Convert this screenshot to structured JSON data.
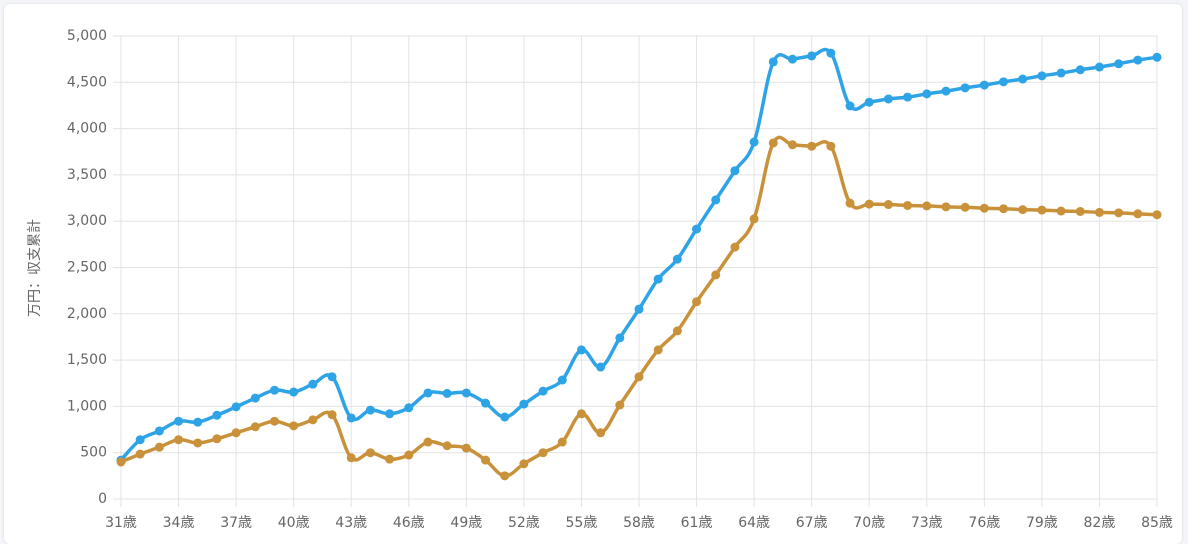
{
  "chart_data": {
    "type": "line",
    "y_label": "万円：収支累計",
    "categories": [
      "31歳",
      null,
      null,
      "34歳",
      null,
      null,
      "37歳",
      null,
      null,
      "40歳",
      null,
      null,
      "43歳",
      null,
      null,
      "46歳",
      null,
      null,
      "49歳",
      null,
      null,
      "52歳",
      null,
      null,
      "55歳",
      null,
      null,
      "58歳",
      null,
      null,
      "61歳",
      null,
      null,
      "64歳",
      null,
      null,
      "67歳",
      null,
      null,
      "70歳",
      null,
      null,
      "73歳",
      null,
      null,
      "76歳",
      null,
      null,
      "79歳",
      null,
      null,
      "82歳",
      null,
      null,
      "85歳"
    ],
    "series": [
      {
        "color": "#2ea4e6",
        "values": [
          420,
          640,
          735,
          840,
          830,
          905,
          995,
          1090,
          1175,
          1155,
          1240,
          1320,
          875,
          960,
          920,
          985,
          1145,
          1140,
          1145,
          1035,
          885,
          1025,
          1165,
          1285,
          1610,
          1425,
          1740,
          2050,
          2375,
          2590,
          2915,
          3230,
          3545,
          3855,
          4720,
          4750,
          4785,
          4815,
          4245,
          4285,
          4320,
          4340,
          4375,
          4405,
          4440,
          4470,
          4505,
          4535,
          4570,
          4600,
          4635,
          4665,
          4700,
          4740,
          4770
        ]
      },
      {
        "color": "#c9913a",
        "values": [
          400,
          485,
          560,
          640,
          605,
          650,
          715,
          780,
          840,
          790,
          855,
          910,
          445,
          500,
          430,
          475,
          615,
          575,
          550,
          420,
          250,
          380,
          500,
          615,
          920,
          715,
          1015,
          1320,
          1610,
          1815,
          2130,
          2420,
          2720,
          3025,
          3845,
          3825,
          3810,
          3810,
          3195,
          3185,
          3180,
          3170,
          3165,
          3155,
          3150,
          3140,
          3135,
          3125,
          3120,
          3110,
          3105,
          3095,
          3090,
          3080,
          3070
        ]
      }
    ],
    "ylim": [
      0,
      5000
    ],
    "yticks": [
      {
        "value": 0,
        "label": "0"
      },
      {
        "value": 500,
        "label": "500"
      },
      {
        "value": 1000,
        "label": "1,000"
      },
      {
        "value": 1500,
        "label": "1,500"
      },
      {
        "value": 2000,
        "label": "2,000"
      },
      {
        "value": 2500,
        "label": "2,500"
      },
      {
        "value": 3000,
        "label": "3,000"
      },
      {
        "value": 3500,
        "label": "3,500"
      },
      {
        "value": 4000,
        "label": "4,000"
      },
      {
        "value": 4500,
        "label": "4,500"
      },
      {
        "value": 5000,
        "label": "5,000"
      }
    ],
    "grid": true
  }
}
